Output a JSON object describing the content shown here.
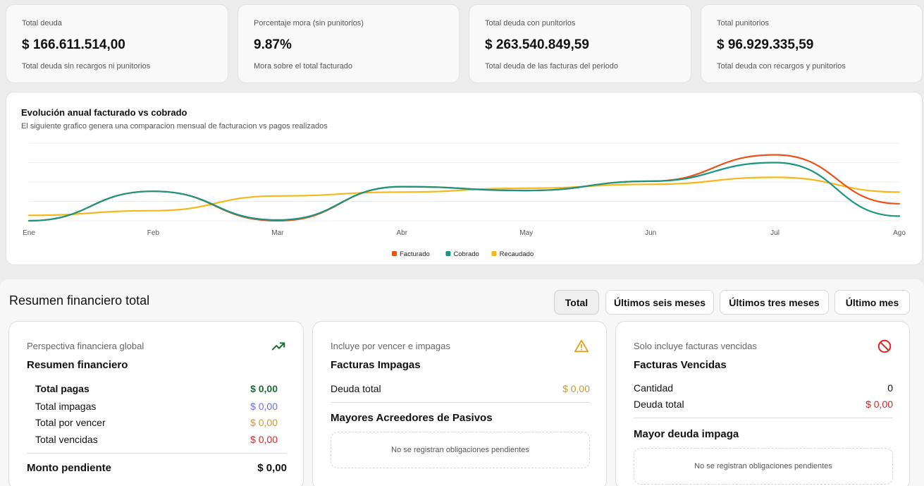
{
  "kpis": [
    {
      "label": "Total deuda",
      "value": "$ 166.611.514,00",
      "sub": "Total deuda sin recargos ni punitorios"
    },
    {
      "label": "Porcentaje mora (sin punitorios)",
      "value": "9.87%",
      "sub": "Mora sobre el total facturado"
    },
    {
      "label": "Total deuda con punitorios",
      "value": "$ 263.540.849,59",
      "sub": "Total deuda de las facturas del periodo"
    },
    {
      "label": "Total punitorios",
      "value": "$ 96.929.335,59",
      "sub": "Total deuda con recargos y punitorios"
    }
  ],
  "chart": {
    "title": "Evolución anual facturado vs cobrado",
    "subtitle": "El siguiente grafico genera una comparacion mensual de facturacion vs pagos realizados"
  },
  "chart_data": {
    "type": "line",
    "categories": [
      "Ene",
      "Feb",
      "Mar",
      "Abr",
      "May",
      "Jun",
      "Jul",
      "Ago"
    ],
    "ylim": [
      0,
      100
    ],
    "grid": true,
    "legend": "bottom",
    "series": [
      {
        "name": "Facturado",
        "color": "#e8531b",
        "values": [
          0,
          38,
          0,
          44,
          39,
          51,
          85,
          22
        ]
      },
      {
        "name": "Cobrado",
        "color": "#1a9580",
        "values": [
          0,
          38,
          1,
          44,
          39,
          51,
          75,
          6
        ]
      },
      {
        "name": "Recaudado",
        "color": "#f4b81a",
        "values": [
          7,
          13,
          32,
          37,
          42,
          47,
          56,
          37
        ]
      }
    ]
  },
  "summary": {
    "title": "Resumen financiero total",
    "filters": [
      "Total",
      "Últimos seis meses",
      "Últimos tres meses",
      "Último mes"
    ],
    "active_filter": "Total"
  },
  "panel1": {
    "tag": "Perspectiva financiera global",
    "title": "Resumen financiero",
    "rows": [
      {
        "label": "Total pagas",
        "amount": "$ 0,00"
      },
      {
        "label": "Total impagas",
        "amount": "$ 0,00"
      },
      {
        "label": "Total por vencer",
        "amount": "$ 0,00"
      },
      {
        "label": "Total vencidas",
        "amount": "$ 0,00"
      }
    ],
    "total_label": "Monto pendiente",
    "total_amount": "$ 0,00",
    "icon": "trending-up-icon",
    "colors": {
      "paid": "#1d6b35",
      "unpaid": "#6772e5",
      "due": "#c99a2e",
      "overdue": "#e02424"
    }
  },
  "panel2": {
    "tag": "Incluye por vencer e impagas",
    "title": "Facturas Impagas",
    "debt_label": "Deuda total",
    "debt_amount": "$ 0,00",
    "sub_title": "Mayores Acreedores de Pasivos",
    "empty": "No se registran obligaciones pendientes",
    "icon": "warning-icon"
  },
  "panel3": {
    "tag": "Solo incluye facturas vencidas",
    "title": "Facturas Vencidas",
    "qty_label": "Cantidad",
    "qty_value": "0",
    "debt_label": "Deuda total",
    "debt_amount": "$ 0,00",
    "sub_title": "Mayor deuda impaga",
    "empty": "No se registran obligaciones pendientes",
    "icon": "forbidden-icon"
  }
}
